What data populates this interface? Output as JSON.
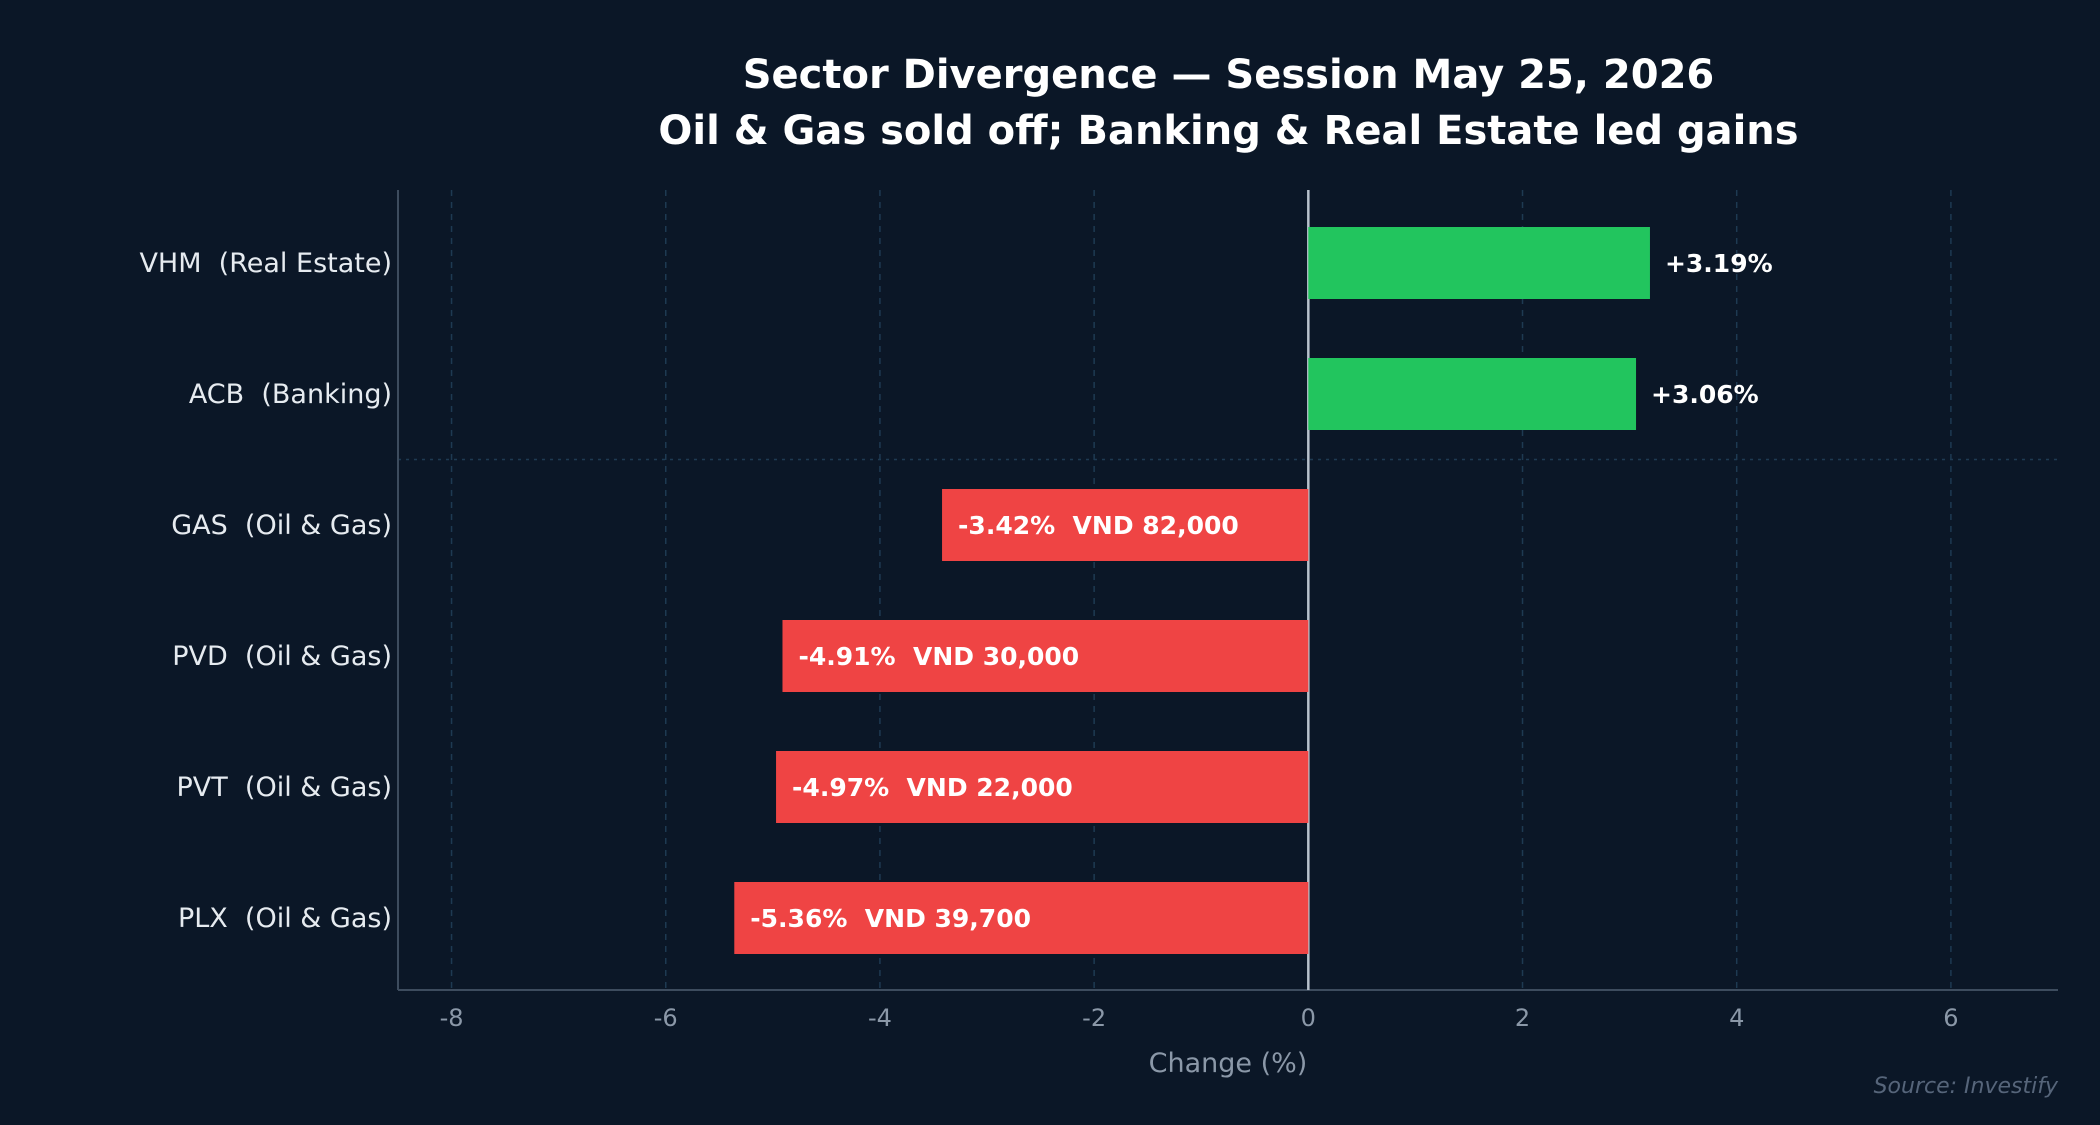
{
  "chart_data": {
    "type": "bar",
    "orientation": "horizontal",
    "title": "Sector Divergence — Session May 25, 2026",
    "subtitle": "Oil & Gas sold off; Banking & Real Estate led gains",
    "xlabel": "Change (%)",
    "ylabel": "",
    "xlim": [
      -8.5,
      7.0
    ],
    "xticks": [
      -8,
      -6,
      -4,
      -2,
      0,
      2,
      4,
      6
    ],
    "grid": "vertical dashed",
    "categories": [
      "VHM  (Real Estate)",
      "ACB  (Banking)",
      "GAS  (Oil & Gas)",
      "PVD  (Oil & Gas)",
      "PVT  (Oil & Gas)",
      "PLX  (Oil & Gas)"
    ],
    "values": [
      3.19,
      3.06,
      -3.42,
      -4.91,
      -4.97,
      -5.36
    ],
    "data_labels": [
      "+3.19%",
      "+3.06%",
      "-3.42%  VND 82,000",
      "-4.91%  VND 30,000",
      "-4.97%  VND 22,000",
      "-5.36%  VND 39,700"
    ],
    "colors": {
      "positive": "#22c55e",
      "negative": "#ef4444"
    },
    "source": "Source: Investify"
  },
  "theme": {
    "background": "#0b1727",
    "grid": "#1e3a52",
    "axis": "#3d4c5e",
    "zero_line": "#b8c2cc",
    "tick_text": "#8b98a8",
    "category_text": "#e6ebf0",
    "label_text": "#ffffff"
  }
}
